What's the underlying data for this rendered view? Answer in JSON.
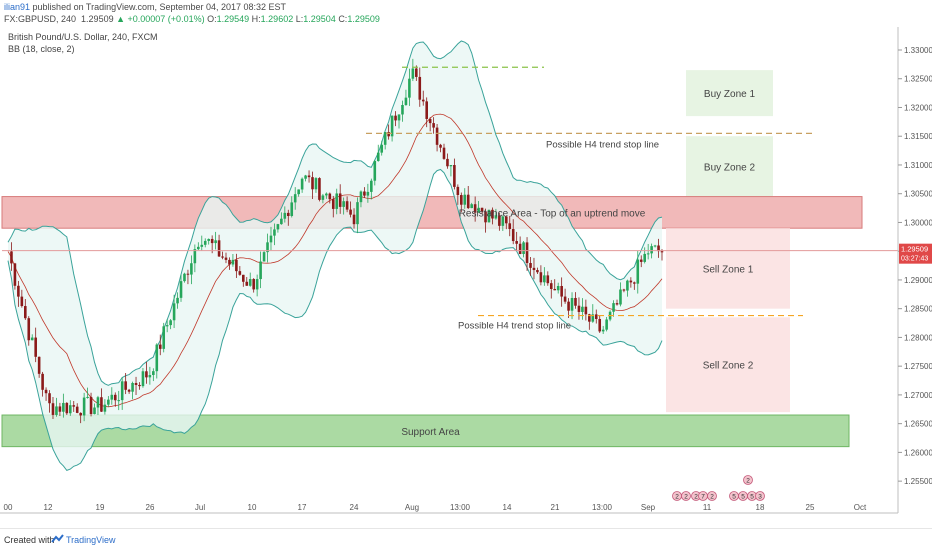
{
  "header": {
    "user": "ilian91",
    "published": "published on TradingView.com, September 04, 2017 08:32 EST",
    "symbol": "FX:GBPUSD, 240",
    "last": "1.29509",
    "change": "▲ +0.00007 (+0.01%)",
    "o_label": "O:",
    "o": "1.29549",
    "h_label": "H:",
    "h": "1.29602",
    "l_label": "L:",
    "l": "1.29504",
    "c_label": "C:",
    "c": "1.29509"
  },
  "legend": {
    "title": "British Pound/U.S. Dollar, 240, FXCM",
    "indicator": "BB (18, close, 2)"
  },
  "price_tag": {
    "value": "1.29509",
    "countdown": "03:27:43"
  },
  "colors": {
    "up": "#26a65b",
    "down": "#8b1a1a",
    "bb_line": "#3aa39a",
    "bb_fill": "#e8f6f4",
    "basis": "#c0392b",
    "resistance": "#eca2a2",
    "support": "#8fce84",
    "buy_zone": "#e7f4e3",
    "sell_zone": "#fbe4e4",
    "dash_green": "#8bc34a",
    "dash_orange": "#f5a623"
  },
  "annotations": {
    "buy1": "Buy Zone 1",
    "buy2": "Buy Zone 2",
    "resistance": "Resistance Area - Top of an uptrend move",
    "sell1": "Sell Zone 1",
    "sell2": "Sell Zone 2",
    "support": "Support Area",
    "stop_upper": "Possible H4 trend stop line",
    "stop_lower": "Possible H4 trend stop line"
  },
  "footer": {
    "created": "Created with",
    "brand": "TradingView"
  },
  "event_labels": [
    "2",
    "2",
    "2",
    "7",
    "2",
    "5",
    "5",
    "5",
    "2",
    "3"
  ],
  "chart_data": {
    "type": "candlestick",
    "title": "British Pound/U.S. Dollar, 240, FXCM",
    "y_range": [
      1.2505,
      1.334
    ],
    "y_ticks": [
      "1.33000",
      "1.32500",
      "1.32000",
      "1.31500",
      "1.31000",
      "1.30500",
      "1.30000",
      "1.29500",
      "1.29000",
      "1.28500",
      "1.28000",
      "1.27500",
      "1.27000",
      "1.26500",
      "1.26000",
      "1.25500"
    ],
    "x_ticks": [
      "00",
      "12",
      "19",
      "26",
      "Jul",
      "10",
      "17",
      "24",
      "Aug",
      "13:00",
      "14",
      "21",
      "13:00",
      "Sep",
      "11",
      "18",
      "25",
      "Oct"
    ],
    "current_price": 1.29509,
    "key_points": [
      {
        "x": "00",
        "price": 1.295
      },
      {
        "x": "12",
        "price": 1.268
      },
      {
        "x": "19",
        "price": 1.268
      },
      {
        "x": "26",
        "price": 1.274
      },
      {
        "x": "Jul",
        "price": 1.298
      },
      {
        "x": "10",
        "price": 1.289
      },
      {
        "x": "17",
        "price": 1.308
      },
      {
        "x": "24",
        "price": 1.301
      },
      {
        "x": "Aug",
        "price": 1.326
      },
      {
        "x": "13:00",
        "price": 1.305
      },
      {
        "x": "14",
        "price": 1.299
      },
      {
        "x": "21",
        "price": 1.288
      },
      {
        "x": "13:00",
        "price": 1.281
      },
      {
        "x": "Sep",
        "price": 1.295
      }
    ],
    "zones": [
      {
        "name": "Buy Zone 1",
        "from": 1.3185,
        "to": 1.3265
      },
      {
        "name": "Buy Zone 2",
        "from": 1.3045,
        "to": 1.315
      },
      {
        "name": "Resistance Area - Top of an uptrend move",
        "from": 1.299,
        "to": 1.3045
      },
      {
        "name": "Sell Zone 1",
        "from": 1.285,
        "to": 1.299
      },
      {
        "name": "Sell Zone 2",
        "from": 1.267,
        "to": 1.2835
      },
      {
        "name": "Support Area",
        "from": 1.261,
        "to": 1.2665
      }
    ],
    "lines": [
      {
        "name": "Possible H4 trend stop line",
        "price": 1.3155
      },
      {
        "name": "Possible H4 trend stop line",
        "price": 1.2838
      },
      {
        "price": 1.327
      }
    ]
  }
}
